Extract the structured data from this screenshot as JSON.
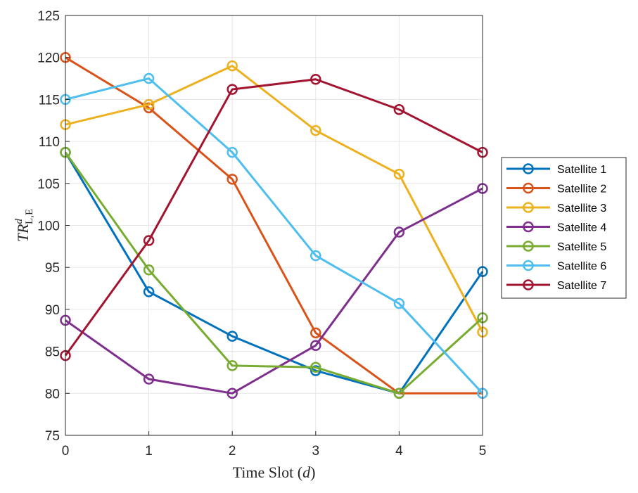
{
  "chart_data": {
    "type": "line",
    "title": "",
    "xlabel": "Time Slot (d)",
    "xlabel_parts": {
      "pre": "Time Slot (",
      "var": "d",
      "post": ")"
    },
    "ylabel": "TR^d_L,E",
    "ylabel_parts": {
      "base": "TR",
      "sup": "d",
      "sub": "L,E"
    },
    "x": [
      0,
      1,
      2,
      3,
      4,
      5
    ],
    "xlim": [
      0,
      5
    ],
    "ylim": [
      75,
      125
    ],
    "xticks": [
      "0",
      "1",
      "2",
      "3",
      "4",
      "5"
    ],
    "yticks": [
      "75",
      "80",
      "85",
      "90",
      "95",
      "100",
      "105",
      "110",
      "115",
      "120",
      "125"
    ],
    "grid": true,
    "legend_position": "outside-right",
    "series": [
      {
        "name": "Satellite 1",
        "color": "#0072BD",
        "values": [
          108.7,
          92.1,
          86.8,
          82.7,
          80.0,
          94.5
        ]
      },
      {
        "name": "Satellite 2",
        "color": "#D95319",
        "values": [
          120.0,
          114.0,
          105.5,
          87.2,
          80.0,
          80.0
        ]
      },
      {
        "name": "Satellite 3",
        "color": "#EDB120",
        "values": [
          112.0,
          114.4,
          119.0,
          111.3,
          106.1,
          87.3
        ]
      },
      {
        "name": "Satellite 4",
        "color": "#7E2F8E",
        "values": [
          88.7,
          81.7,
          80.0,
          85.7,
          99.2,
          104.4
        ]
      },
      {
        "name": "Satellite 5",
        "color": "#77AC30",
        "values": [
          108.7,
          94.7,
          83.3,
          83.1,
          80.0,
          89.0
        ]
      },
      {
        "name": "Satellite 6",
        "color": "#4DBEEE",
        "values": [
          115.0,
          117.5,
          108.7,
          96.4,
          90.7,
          80.0
        ]
      },
      {
        "name": "Satellite 7",
        "color": "#A2142F",
        "values": [
          84.5,
          98.2,
          116.2,
          117.4,
          113.8,
          108.7
        ]
      }
    ]
  }
}
